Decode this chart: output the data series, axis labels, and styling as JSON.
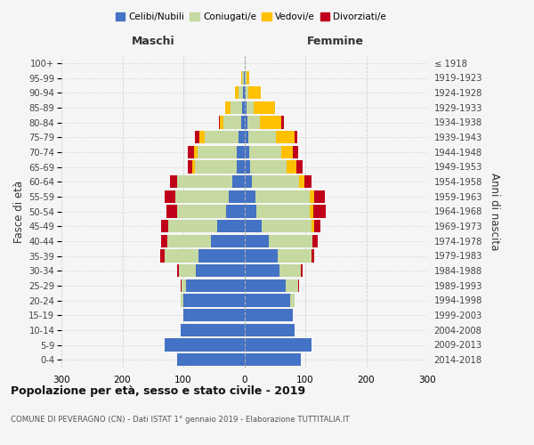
{
  "age_groups": [
    "0-4",
    "5-9",
    "10-14",
    "15-19",
    "20-24",
    "25-29",
    "30-34",
    "35-39",
    "40-44",
    "45-49",
    "50-54",
    "55-59",
    "60-64",
    "65-69",
    "70-74",
    "75-79",
    "80-84",
    "85-89",
    "90-94",
    "95-99",
    "100+"
  ],
  "birth_years": [
    "2014-2018",
    "2009-2013",
    "2004-2008",
    "1999-2003",
    "1994-1998",
    "1989-1993",
    "1984-1988",
    "1979-1983",
    "1974-1978",
    "1969-1973",
    "1964-1968",
    "1959-1963",
    "1954-1958",
    "1949-1953",
    "1944-1948",
    "1939-1943",
    "1934-1938",
    "1929-1933",
    "1924-1928",
    "1919-1923",
    "≤ 1918"
  ],
  "maschi": {
    "celibi": [
      110,
      130,
      105,
      100,
      100,
      95,
      80,
      75,
      55,
      45,
      30,
      25,
      20,
      13,
      12,
      10,
      5,
      4,
      2,
      1,
      0
    ],
    "coniugati": [
      0,
      0,
      0,
      0,
      5,
      8,
      28,
      55,
      72,
      80,
      80,
      88,
      90,
      68,
      65,
      55,
      30,
      18,
      8,
      2,
      0
    ],
    "vedovi": [
      0,
      0,
      0,
      0,
      0,
      0,
      0,
      0,
      0,
      0,
      0,
      0,
      0,
      4,
      5,
      8,
      5,
      10,
      5,
      2,
      0
    ],
    "divorziati": [
      0,
      0,
      0,
      0,
      0,
      2,
      2,
      8,
      10,
      12,
      18,
      18,
      12,
      8,
      10,
      8,
      2,
      0,
      0,
      0,
      0
    ]
  },
  "femmine": {
    "nubili": [
      92,
      110,
      82,
      80,
      75,
      68,
      58,
      55,
      40,
      28,
      20,
      18,
      12,
      10,
      8,
      7,
      5,
      3,
      2,
      1,
      0
    ],
    "coniugate": [
      0,
      0,
      0,
      0,
      8,
      20,
      35,
      55,
      72,
      82,
      88,
      90,
      78,
      60,
      52,
      45,
      20,
      12,
      5,
      2,
      0
    ],
    "vedove": [
      0,
      0,
      0,
      0,
      0,
      0,
      0,
      0,
      0,
      5,
      5,
      6,
      8,
      15,
      20,
      30,
      35,
      35,
      20,
      5,
      0
    ],
    "divorziate": [
      0,
      0,
      0,
      0,
      0,
      2,
      2,
      5,
      8,
      10,
      20,
      18,
      12,
      10,
      8,
      5,
      5,
      0,
      0,
      0,
      0
    ]
  },
  "colors": {
    "celibi_nubili": "#4472c4",
    "coniugati": "#c5d9a0",
    "vedovi": "#ffc000",
    "divorziati": "#c0001a"
  },
  "title": "Popolazione per età, sesso e stato civile - 2019",
  "subtitle": "COMUNE DI PEVERAGNO (CN) - Dati ISTAT 1° gennaio 2019 - Elaborazione TUTTITALIA.IT",
  "ylabel_left": "Fasce di età",
  "ylabel_right": "Anni di nascita",
  "xlabel_maschi": "Maschi",
  "xlabel_femmine": "Femmine",
  "xlim": 300,
  "background_color": "#f5f5f5",
  "grid_color": "#cccccc"
}
